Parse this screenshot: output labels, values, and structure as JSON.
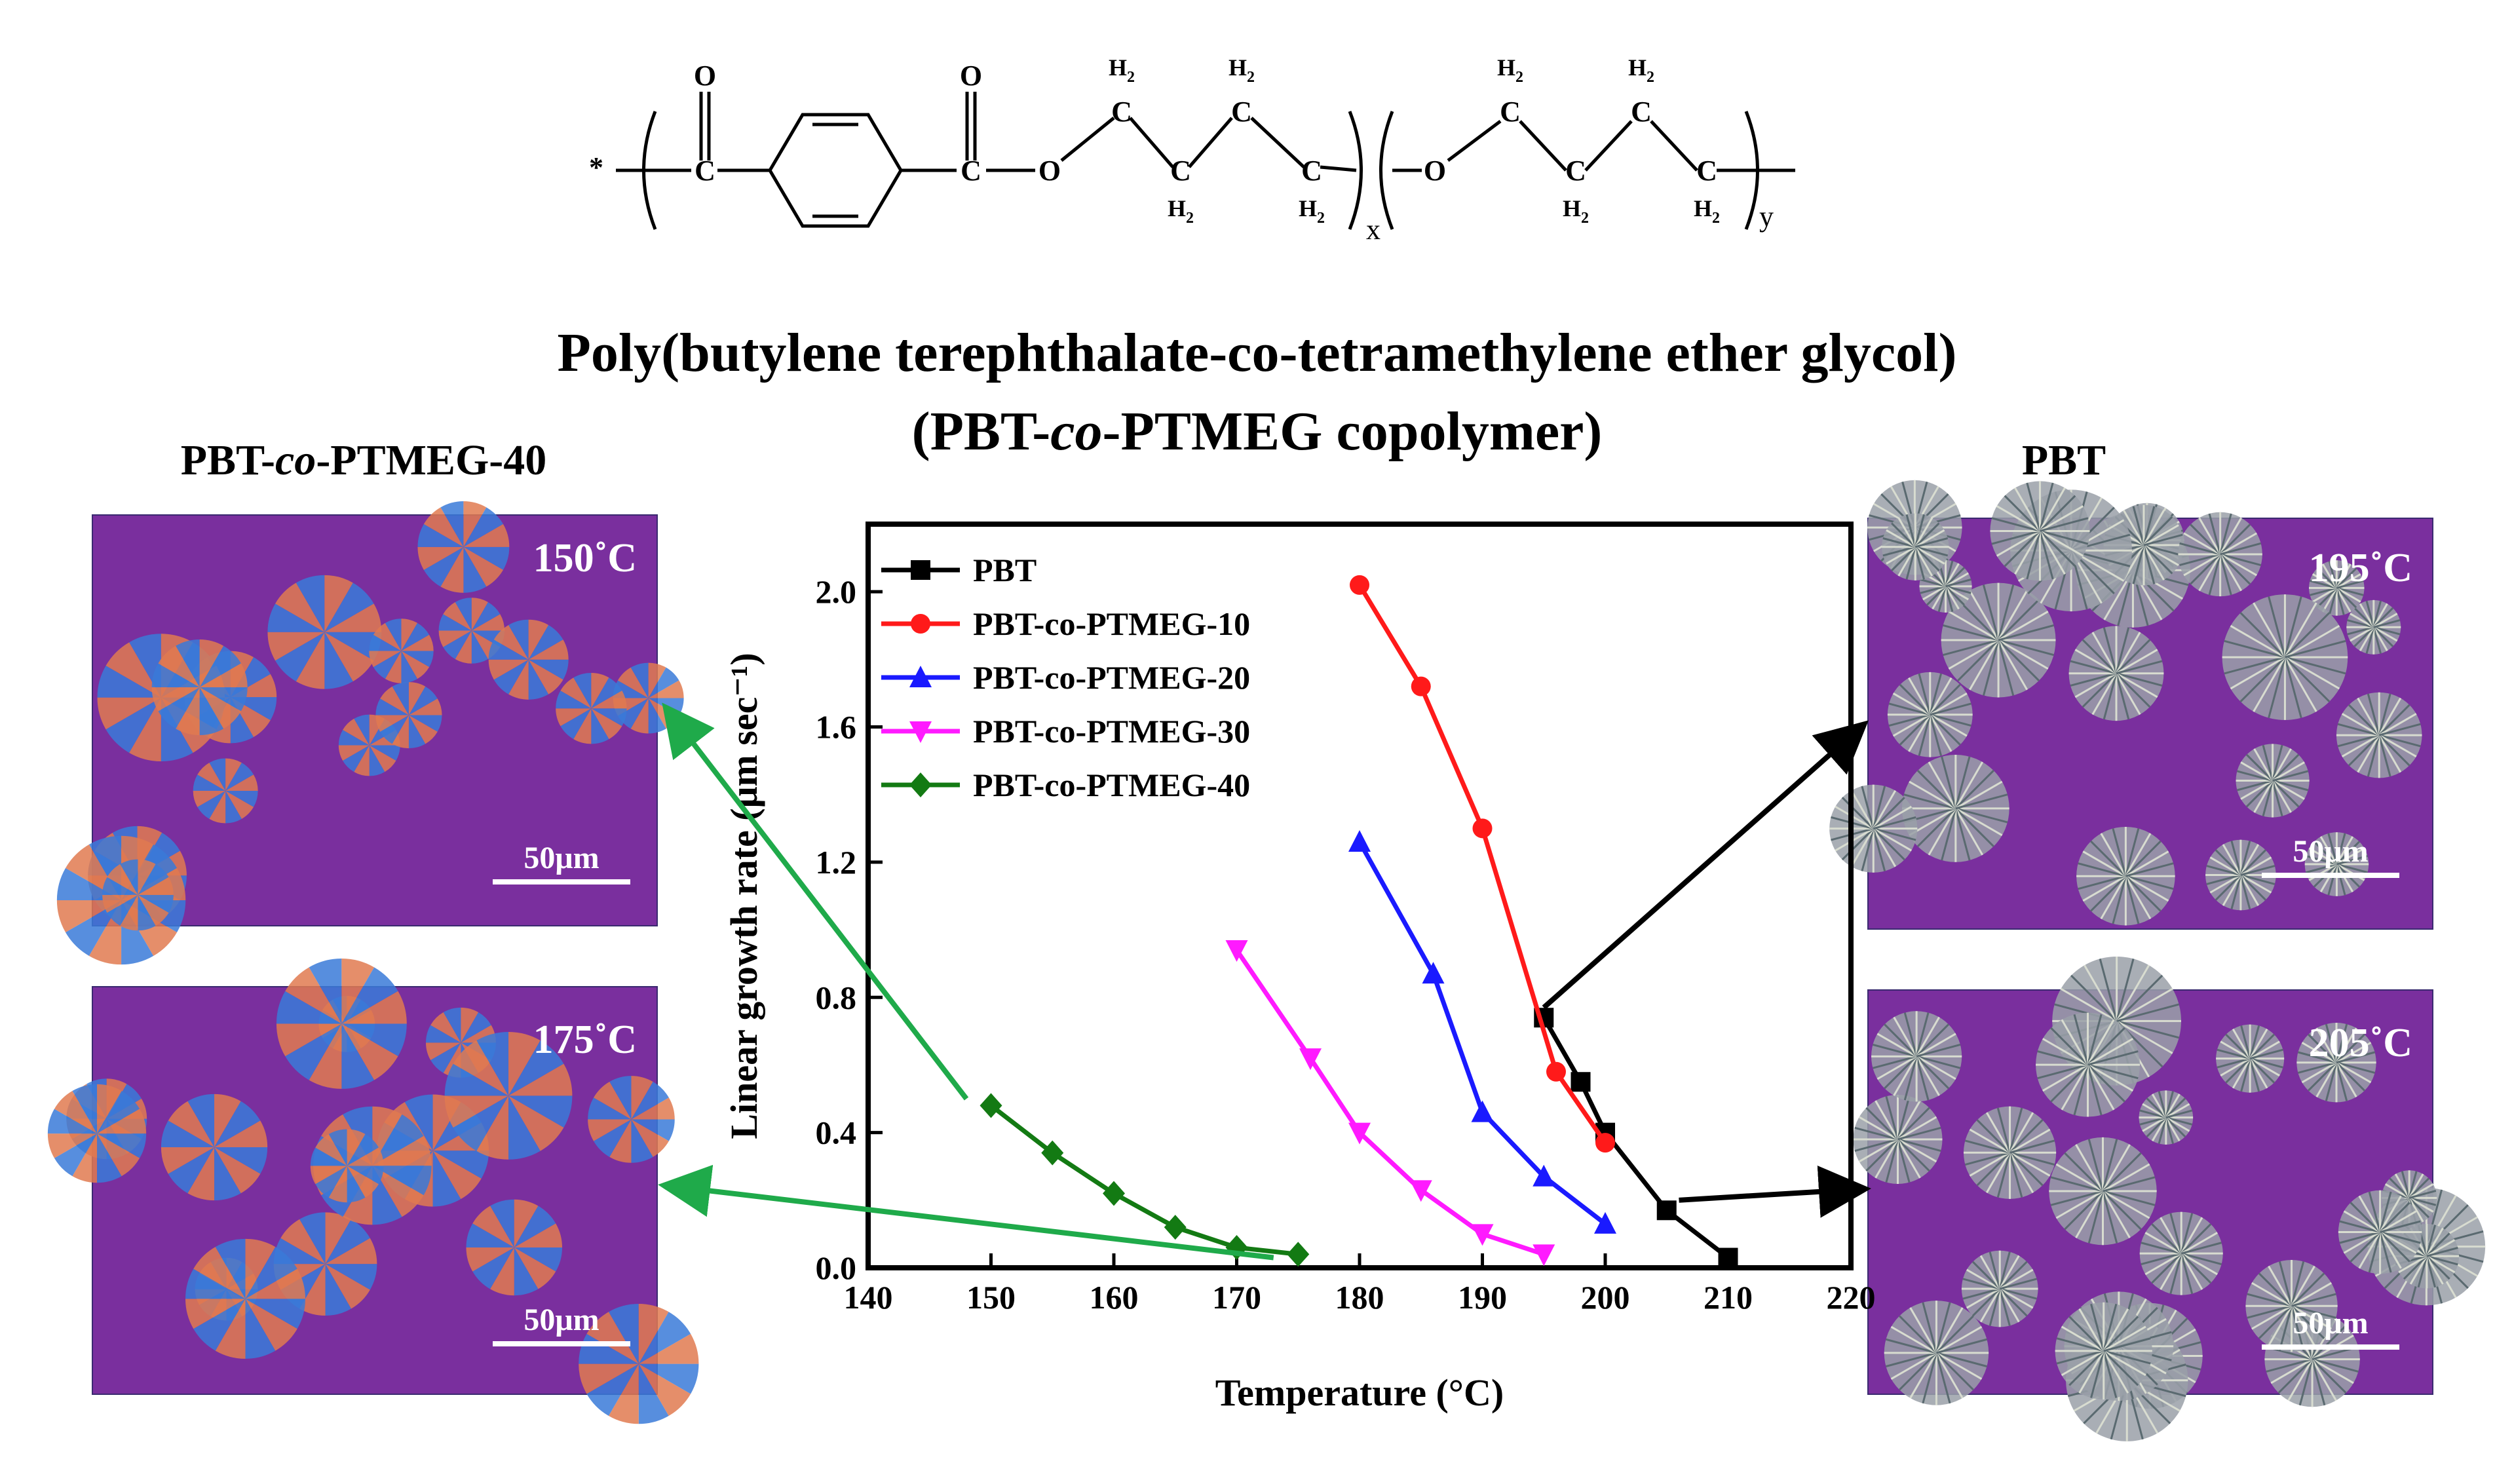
{
  "structure": {
    "star": "*",
    "o_label": "O",
    "c_label": "C",
    "h2_label": "H",
    "h2_sub": "2",
    "x_sub": "x",
    "y_sub": "y"
  },
  "title": {
    "line1": "Poly(butylene terephthalate-co-tetramethylene ether glycol)",
    "line2_pre": "(PBT-",
    "line2_italic": "co",
    "line2_post": "-PTMEG copolymer)"
  },
  "left_panel": {
    "title_pre": "PBT-",
    "title_italic": "co",
    "title_post": "-PTMEG-40",
    "images": [
      {
        "temp": "150",
        "unit": "˚C",
        "scale": "50μm"
      },
      {
        "temp": "175",
        "unit": "˚C",
        "scale": "50μm"
      }
    ]
  },
  "right_panel": {
    "title": "PBT",
    "images": [
      {
        "temp": "195",
        "unit": "˚C",
        "scale": "50μm"
      },
      {
        "temp": "205",
        "unit": "˚C",
        "scale": "50μm"
      }
    ]
  },
  "colors": {
    "PBT": "#000000",
    "PBT-co-PTMEG-10": "#ff1a1a",
    "PBT-co-PTMEG-20": "#1a1aff",
    "PBT-co-PTMEG-30": "#ff1aff",
    "PBT-co-PTMEG-40": "#137a13",
    "left_arrow": "#1faa4a",
    "right_arrow": "#000000",
    "micro_bg": "#7a2f9e"
  },
  "chart_data": {
    "type": "line",
    "xlabel": "Temperature (°C)",
    "ylabel": "Linear growth rate (μm sec⁻¹)",
    "xlim": [
      140,
      220
    ],
    "ylim": [
      0,
      2.2
    ],
    "xticks": [
      "140",
      "150",
      "160",
      "170",
      "180",
      "190",
      "200",
      "210",
      "220"
    ],
    "yticks": [
      "0.0",
      "0.4",
      "0.8",
      "1.2",
      "1.6",
      "2.0"
    ],
    "legend_position": "top-left",
    "series": [
      {
        "name": "PBT",
        "marker": "square",
        "x": [
          195,
          198,
          200,
          205,
          210
        ],
        "y": [
          0.74,
          0.55,
          0.4,
          0.17,
          0.03
        ]
      },
      {
        "name": "PBT-co-PTMEG-10",
        "marker": "circle",
        "x": [
          180,
          185,
          190,
          196,
          200
        ],
        "y": [
          2.02,
          1.72,
          1.3,
          0.58,
          0.37
        ]
      },
      {
        "name": "PBT-co-PTMEG-20",
        "marker": "triangle-up",
        "x": [
          180,
          186,
          190,
          195,
          200
        ],
        "y": [
          1.26,
          0.87,
          0.46,
          0.27,
          0.13
        ]
      },
      {
        "name": "PBT-co-PTMEG-30",
        "marker": "triangle-down",
        "x": [
          170,
          176,
          180,
          185,
          190,
          195
        ],
        "y": [
          0.94,
          0.62,
          0.4,
          0.23,
          0.1,
          0.04
        ]
      },
      {
        "name": "PBT-co-PTMEG-40",
        "marker": "diamond",
        "x": [
          150,
          155,
          160,
          165,
          170,
          175
        ],
        "y": [
          0.48,
          0.34,
          0.22,
          0.12,
          0.06,
          0.04
        ]
      }
    ]
  }
}
